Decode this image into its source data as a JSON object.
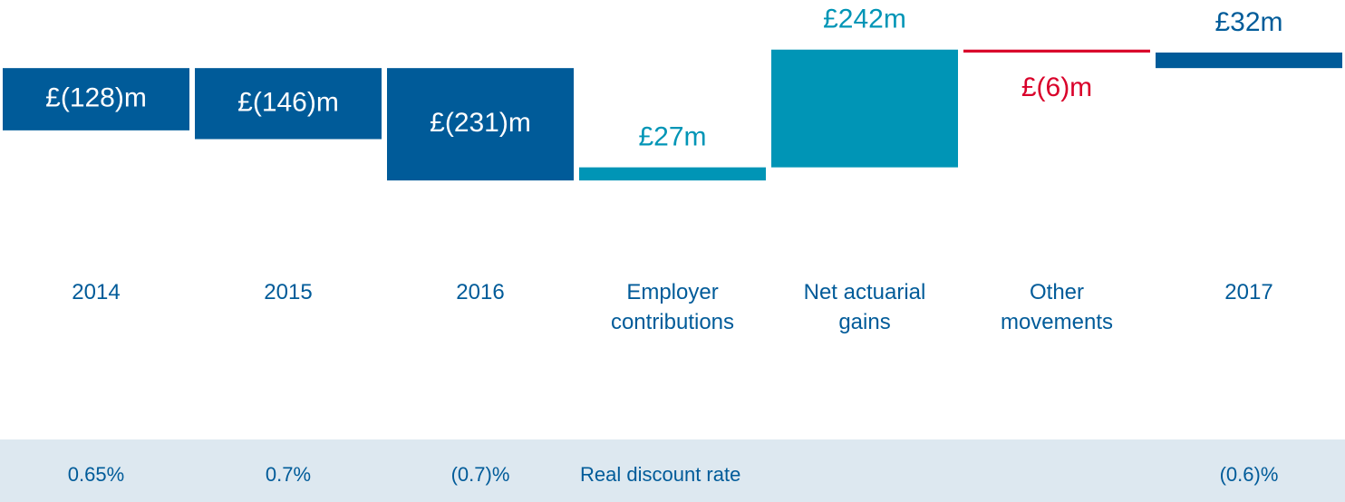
{
  "chart_data": {
    "type": "waterfall",
    "categories": [
      "2014",
      "2015",
      "2016",
      "Employer contributions",
      "Net actuarial gains",
      "Other movements",
      "2017"
    ],
    "measures": [
      "total",
      "total",
      "total",
      "relative",
      "relative",
      "relative",
      "total"
    ],
    "values": [
      -128,
      -146,
      -231,
      27,
      242,
      -6,
      32
    ],
    "value_labels": [
      "£(128)m",
      "£(146)m",
      "£(231)m",
      "£27m",
      "£242m",
      "£(6)m",
      "£32m"
    ],
    "colors": {
      "total": "#005b99",
      "increase": "#0095b6",
      "decrease": "#d9002a"
    },
    "ylim": [
      -240,
      45
    ],
    "rate_row": {
      "label": "Real discount rate",
      "values": [
        "0.65%",
        "0.7%",
        "(0.7)%",
        null,
        null,
        null,
        "(0.6)%"
      ]
    }
  }
}
